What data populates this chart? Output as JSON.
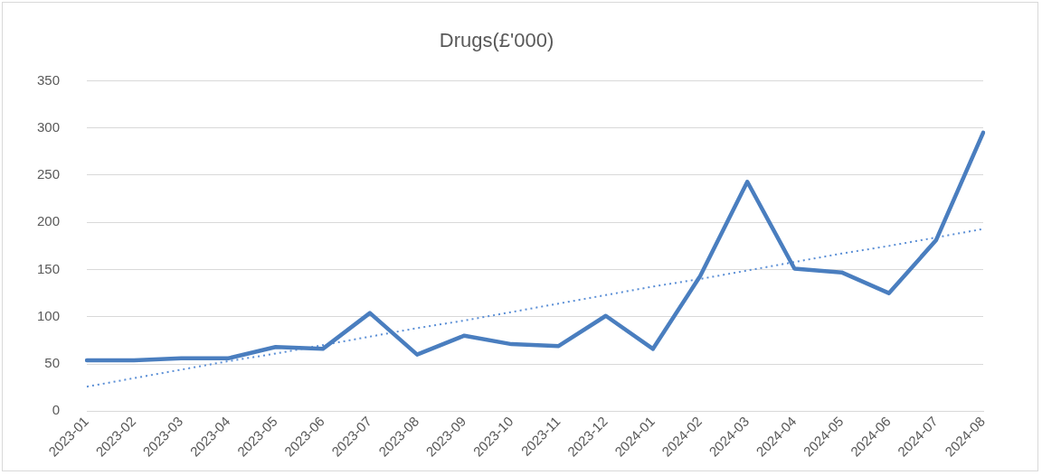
{
  "chart_data": {
    "type": "line",
    "title": "Drugs(£'000)",
    "categories": [
      "2023-01",
      "2023-02",
      "2023-03",
      "2023-04",
      "2023-05",
      "2023-06",
      "2023-07",
      "2023-08",
      "2023-09",
      "2023-10",
      "2023-11",
      "2023-12",
      "2024-01",
      "2024-02",
      "2024-03",
      "2024-04",
      "2024-05",
      "2024-06",
      "2024-07",
      "2024-08"
    ],
    "series": [
      {
        "color": "#4a7ebf",
        "values": [
          54,
          54,
          56,
          56,
          68,
          66,
          104,
          60,
          80,
          71,
          69,
          101,
          66,
          143,
          243,
          151,
          147,
          125,
          181,
          295
        ],
        "line_style": "solid"
      },
      {
        "type": "line",
        "color": "#5b8fd6",
        "values": [
          26,
          35,
          44,
          53,
          61,
          70,
          79,
          88,
          96,
          105,
          114,
          123,
          132,
          140,
          149,
          158,
          167,
          175,
          184,
          193
        ],
        "line_style": "dotted"
      }
    ],
    "ylim": [
      0,
      350
    ],
    "yticks": [
      0,
      50,
      100,
      150,
      200,
      250,
      300,
      350
    ],
    "grid": "y",
    "legend": false,
    "marker": "none"
  }
}
